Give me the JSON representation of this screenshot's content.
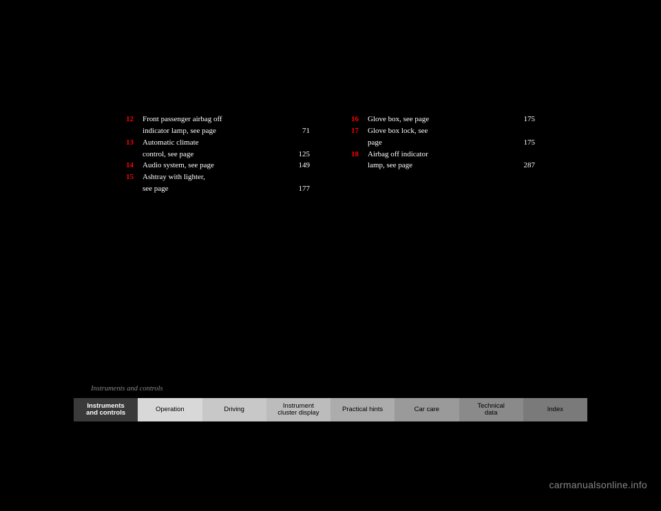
{
  "left_items": [
    {
      "num": "12",
      "text": "Front passenger airbag off\nindicator lamp, see page",
      "page": "71"
    },
    {
      "num": "13",
      "text": "Automatic climate\ncontrol, see page",
      "page": "125"
    },
    {
      "num": "14",
      "text": "Audio system, see page",
      "page": "149"
    },
    {
      "num": "15",
      "text": "Ashtray with lighter,\nsee page",
      "page": "177"
    }
  ],
  "right_items": [
    {
      "num": "16",
      "text": "Glove box, see page",
      "page": "175"
    },
    {
      "num": "17",
      "text": "Glove box lock, see\npage",
      "page": "175"
    },
    {
      "num": "18",
      "text": "Airbag off indicator\nlamp, see page",
      "page": "287"
    }
  ],
  "caption": "Instruments and controls",
  "tabs": [
    {
      "label": "Instruments\nand controls",
      "cls": "active"
    },
    {
      "label": "Operation",
      "cls": "t1"
    },
    {
      "label": "Driving",
      "cls": "t2"
    },
    {
      "label": "Instrument\ncluster display",
      "cls": "t3"
    },
    {
      "label": "Practical hints",
      "cls": "t4"
    },
    {
      "label": "Car care",
      "cls": "t5"
    },
    {
      "label": "Technical\ndata",
      "cls": "t6"
    },
    {
      "label": "Index",
      "cls": "t7"
    }
  ],
  "watermark": "carmanualsonline.info"
}
